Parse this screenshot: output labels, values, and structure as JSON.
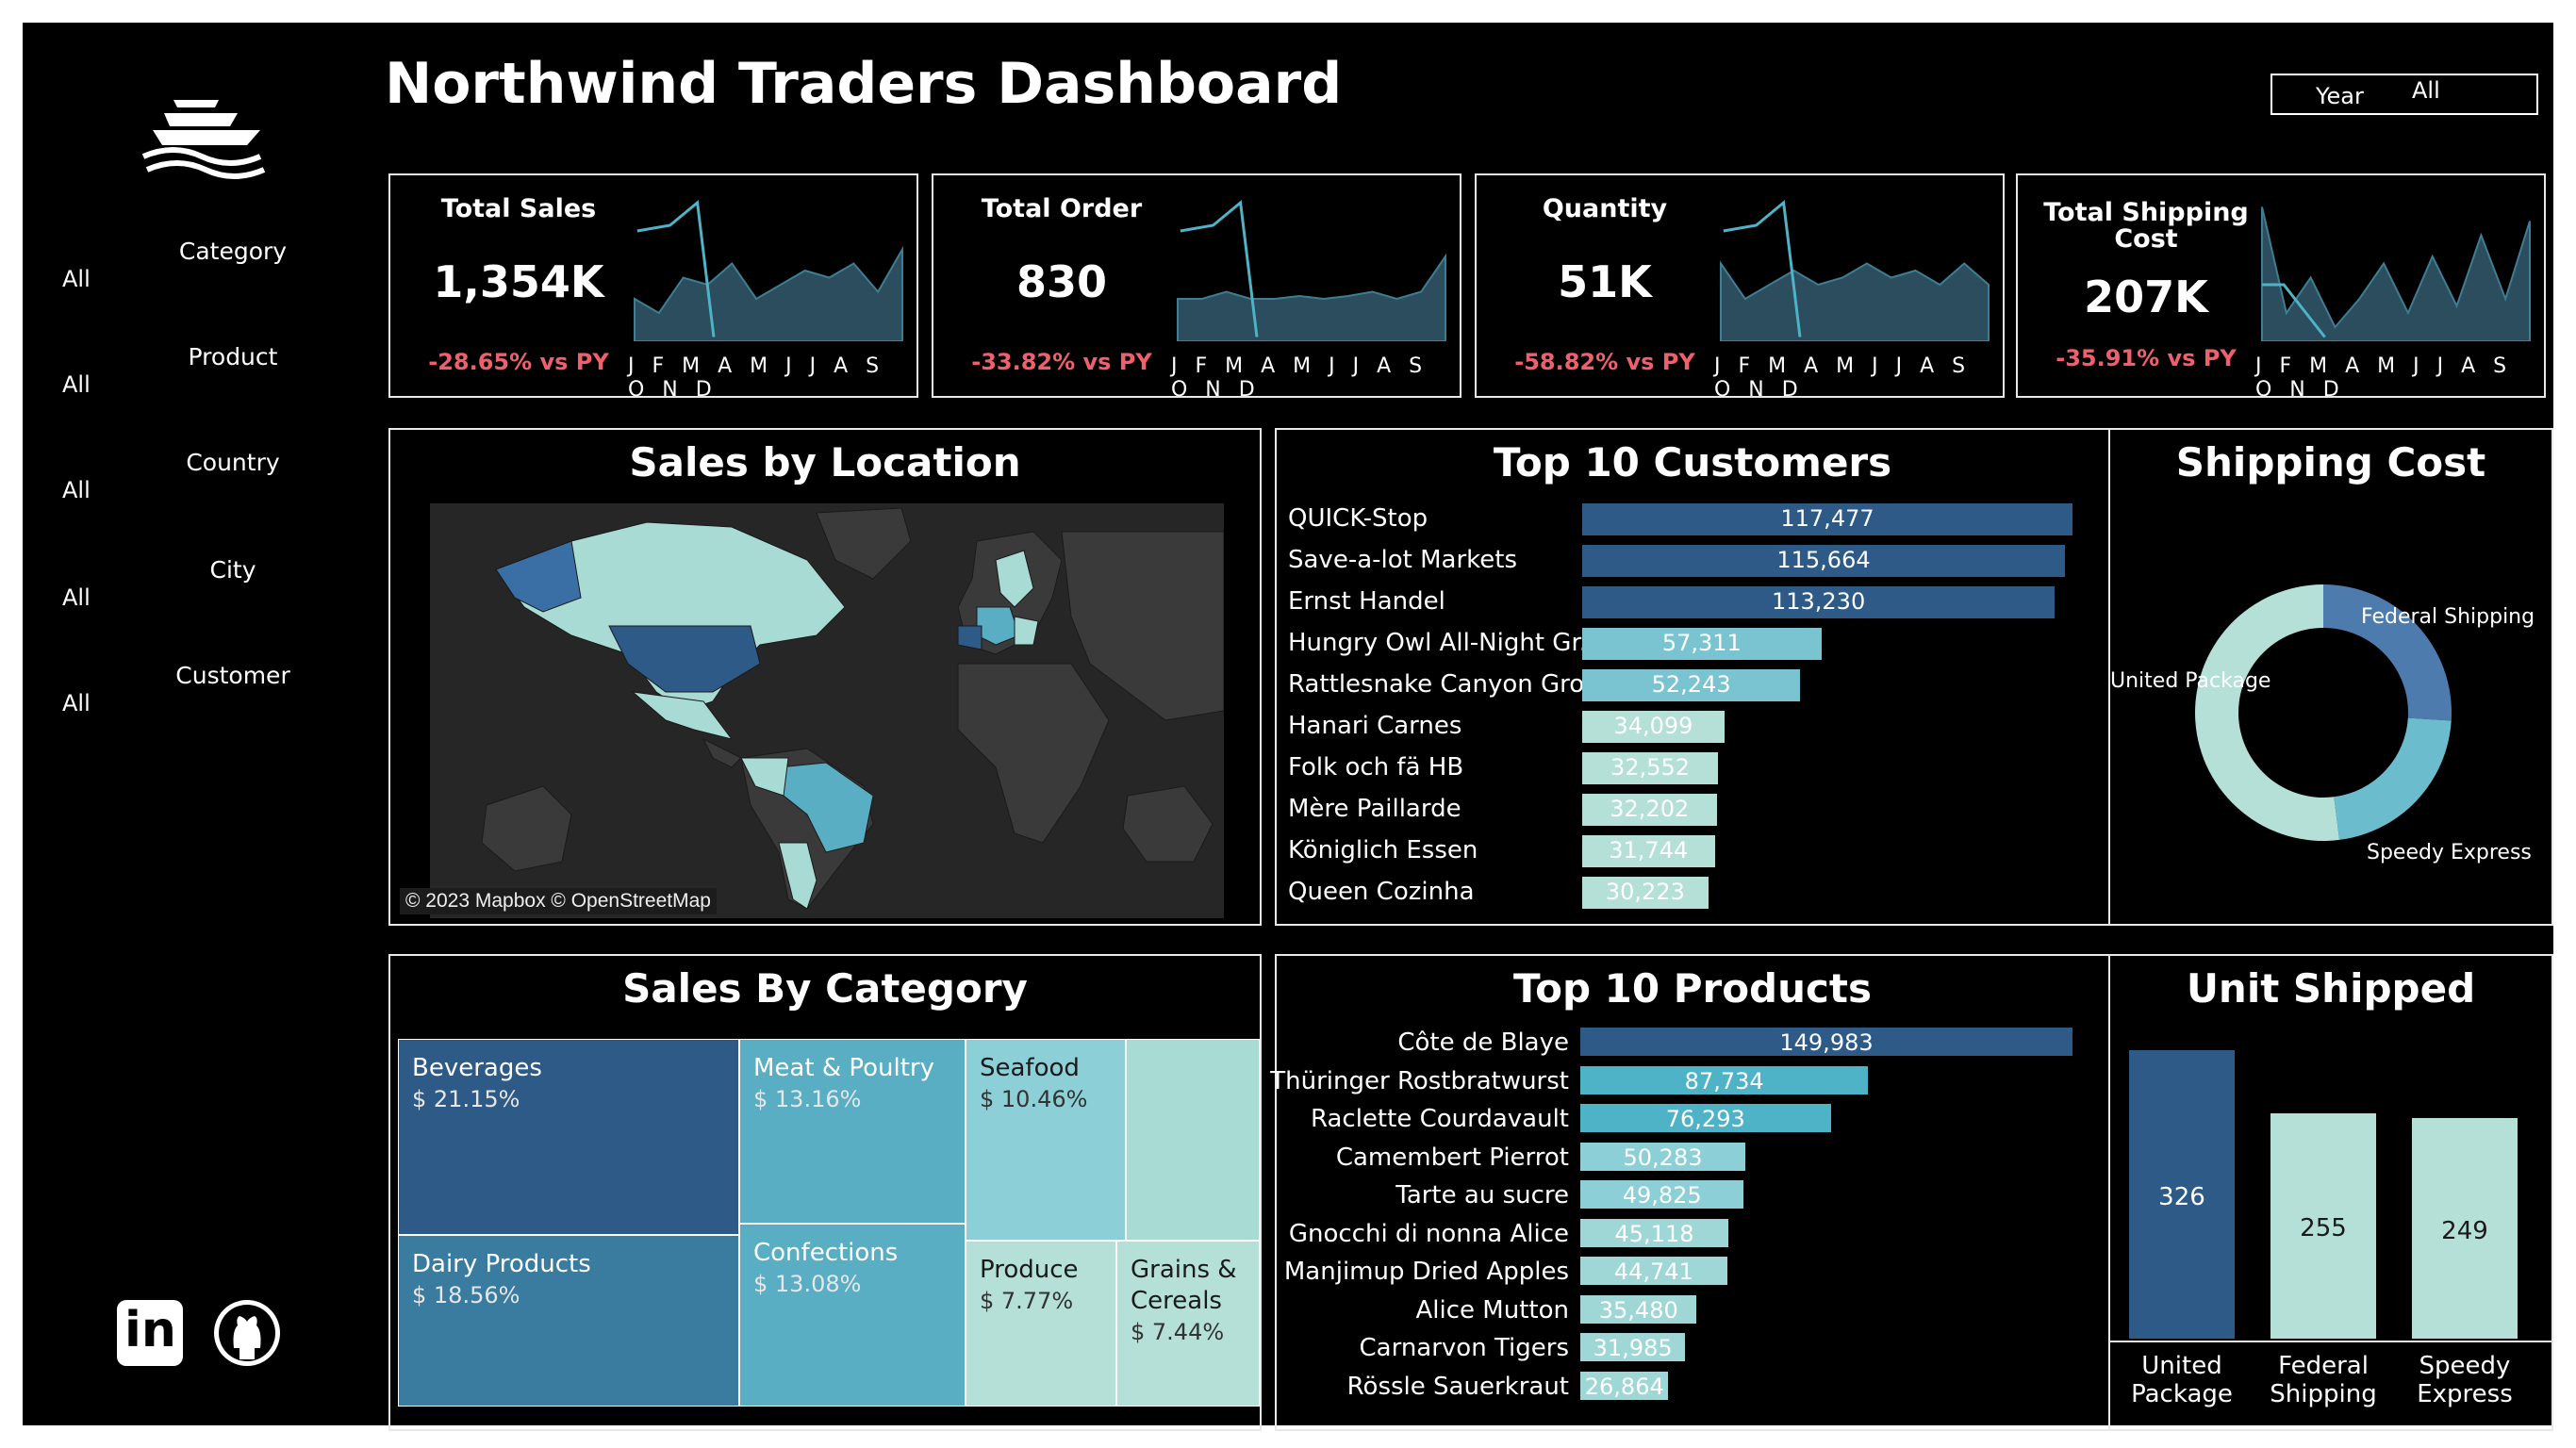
{
  "header": {
    "title": "Northwind Traders Dashboard",
    "year_label": "Year",
    "year_value": "All"
  },
  "filters": [
    {
      "label": "Category",
      "value": "All"
    },
    {
      "label": "Product",
      "value": "All"
    },
    {
      "label": "Country",
      "value": "All"
    },
    {
      "label": "City",
      "value": "All"
    },
    {
      "label": "Customer",
      "value": "All"
    }
  ],
  "kpis": [
    {
      "title": "Total Sales",
      "value": "1,354K",
      "delta": "-28.65% vs PY"
    },
    {
      "title": "Total Order",
      "value": "830",
      "delta": "-33.82% vs PY"
    },
    {
      "title": "Quantity",
      "value": "51K",
      "delta": "-58.82% vs PY"
    },
    {
      "title": "Total Shipping Cost",
      "value": "207K",
      "delta": "-35.91% vs PY"
    }
  ],
  "month_labels": "J F M A M J J A S O N D",
  "sales_by_location": {
    "title": "Sales by Location",
    "attribution": "© 2023 Mapbox © OpenStreetMap"
  },
  "top_customers": {
    "title": "Top 10 Customers"
  },
  "shipping_cost": {
    "title": "Shipping Cost",
    "labels": [
      "Federal Shipping",
      "United Package",
      "Speedy Express"
    ]
  },
  "sales_by_category": {
    "title": "Sales By Category"
  },
  "top_products": {
    "title": "Top 10 Products"
  },
  "unit_shipped": {
    "title": "Unit Shipped"
  },
  "colors": {
    "dark": "#2e5a88",
    "mid": "#5aaec4",
    "light": "#b4e0d8",
    "accent": "#4fb3c8",
    "negative": "#f0606c"
  },
  "chart_data": [
    {
      "type": "bar",
      "name": "Top 10 Customers",
      "categories": [
        "QUICK-Stop",
        "Save-a-lot Markets",
        "Ernst Handel",
        "Hungry Owl All-Night Gr..",
        "Rattlesnake Canyon Gro..",
        "Hanari Carnes",
        "Folk och fä HB",
        "Mère Paillarde",
        "Königlich Essen",
        "Queen Cozinha"
      ],
      "values": [
        117477,
        115664,
        113230,
        57311,
        52243,
        34099,
        32552,
        32202,
        31744,
        30223
      ],
      "labels": [
        "117,477",
        "115,664",
        "113,230",
        "57,311",
        "52,243",
        "34,099",
        "32,552",
        "32,202",
        "31,744",
        "30,223"
      ],
      "orientation": "horizontal"
    },
    {
      "type": "bar",
      "name": "Top 10 Products",
      "categories": [
        "Côte de Blaye",
        "Thüringer Rostbratwurst",
        "Raclette Courdavault",
        "Camembert Pierrot",
        "Tarte au sucre",
        "Gnocchi di nonna Alice",
        "Manjimup Dried Apples",
        "Alice Mutton",
        "Carnarvon Tigers",
        "Rössle Sauerkraut"
      ],
      "values": [
        149983,
        87734,
        76293,
        50283,
        49825,
        45118,
        44741,
        35480,
        31985,
        26864
      ],
      "labels": [
        "149,983",
        "87,734",
        "76,293",
        "50,283",
        "49,825",
        "45,118",
        "44,741",
        "35,480",
        "31,985",
        "26,864"
      ],
      "orientation": "horizontal"
    },
    {
      "type": "pie",
      "name": "Shipping Cost",
      "categories": [
        "Federal Shipping",
        "Speedy Express",
        "United Package"
      ],
      "values": [
        0.26,
        0.22,
        0.52
      ]
    },
    {
      "type": "bar",
      "name": "Unit Shipped",
      "categories": [
        "United Package",
        "Federal Shipping",
        "Speedy Express"
      ],
      "values": [
        326,
        255,
        249
      ],
      "labels": [
        "326",
        "255",
        "249"
      ]
    },
    {
      "type": "heatmap",
      "name": "Sales By Category",
      "categories": [
        "Beverages",
        "Dairy Products",
        "Meat & Poultry",
        "Confections",
        "Seafood",
        "Produce",
        "Grains & Cereals"
      ],
      "labels": [
        "$ 21.15%",
        "$ 18.56%",
        "$ 13.16%",
        "$ 13.08%",
        "$ 10.46%",
        "$ 7.77%",
        "$ 7.44%"
      ],
      "values": [
        21.15,
        18.56,
        13.16,
        13.08,
        10.46,
        7.77,
        7.44
      ]
    },
    {
      "type": "area",
      "name": "KPI sparklines",
      "x": [
        "J",
        "F",
        "M",
        "A",
        "M",
        "J",
        "J",
        "A",
        "S",
        "O",
        "N",
        "D"
      ],
      "series": [
        {
          "values": [
            0.3,
            0.2,
            0.45,
            0.4,
            0.55,
            0.3,
            0.4,
            0.5,
            0.45,
            0.55,
            0.35,
            0.65
          ]
        },
        {
          "values": [
            0.3,
            0.3,
            0.35,
            0.3,
            0.3,
            0.32,
            0.3,
            0.32,
            0.35,
            0.3,
            0.35,
            0.6
          ]
        },
        {
          "values": [
            0.55,
            0.3,
            0.4,
            0.5,
            0.4,
            0.45,
            0.55,
            0.45,
            0.5,
            0.4,
            0.55,
            0.4
          ]
        },
        {
          "values": [
            0.95,
            0.2,
            0.45,
            0.1,
            0.3,
            0.55,
            0.2,
            0.6,
            0.25,
            0.75,
            0.3,
            0.85
          ]
        }
      ]
    }
  ]
}
